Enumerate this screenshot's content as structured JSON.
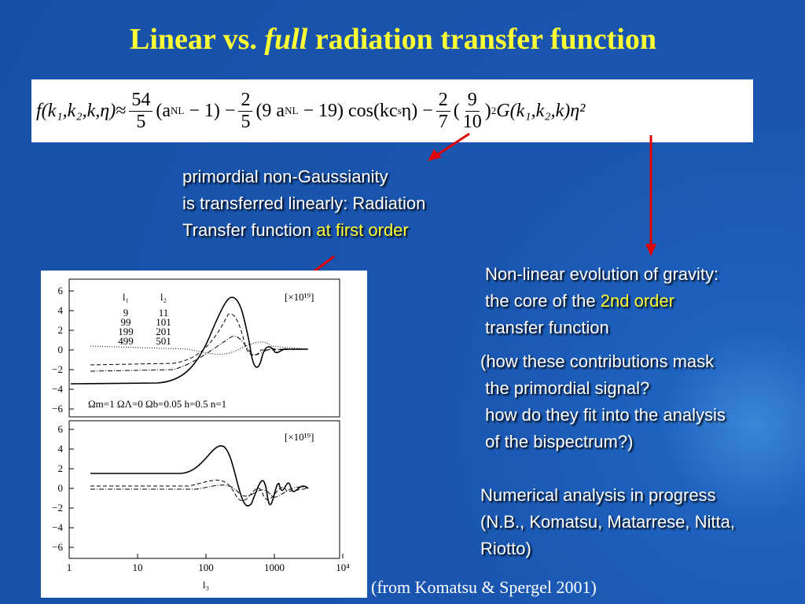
{
  "title": {
    "part1": "Linear  vs. ",
    "italic": "full",
    "part2": " radiation transfer function"
  },
  "equation": {
    "lhs": "f(k₁,k₂,k,η)",
    "approx": "≈",
    "frac1": [
      "54",
      "5"
    ],
    "t1": "(a",
    "nl1": "NL",
    "t1b": " − 1) −",
    "frac2": [
      "2",
      "5"
    ],
    "t2": "(9 a",
    "nl2": "NL",
    "t2b": " − 19) cos(kc",
    "s": "s",
    "t2c": "η) −",
    "frac3": [
      "2",
      "7"
    ],
    "frac4": [
      "9",
      "10"
    ],
    "sq": "2",
    "g": "G(k₁,k₂,k)η²"
  },
  "note1": {
    "line1": "primordial non-Gaussianity",
    "line2": "is transferred linearly: Radiation",
    "line3": "Transfer function ",
    "highlight": "at first order"
  },
  "note2": {
    "line1": "Non-linear evolution of gravity:",
    "line2": "the core of the ",
    "highlight": "2nd order",
    "line3": "transfer function"
  },
  "note3": {
    "lines": [
      "(how these contributions mask",
      " the primordial signal?",
      " how do they fit into the analysis",
      " of the bispectrum?)"
    ]
  },
  "note4": {
    "lines": [
      "Numerical analysis in progress",
      "(N.B., Komatsu, Matarrese, Nitta,",
      "Riotto)"
    ]
  },
  "caption": "(from Komatsu & Spergel 2001)",
  "figure": {
    "yticks": [
      "6",
      "4",
      "2",
      "0",
      "−2",
      "−4",
      "−6"
    ],
    "xticks": [
      "1",
      "10",
      "100",
      "1000",
      "10⁴"
    ],
    "xlabel": "l₃",
    "legend": {
      "head": [
        "l₁",
        "l₂"
      ],
      "rows": [
        [
          "9",
          "11"
        ],
        [
          "99",
          "101"
        ],
        [
          "199",
          "201"
        ],
        [
          "499",
          "501"
        ]
      ]
    },
    "scale": "[×10¹⁹]",
    "params": "Ωm=1   ΩΛ=0   Ωb=0.05   h=0.5   n=1"
  }
}
